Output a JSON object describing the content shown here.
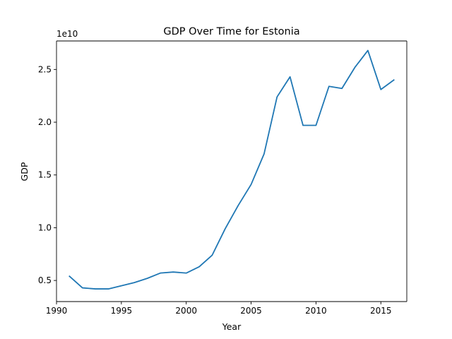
{
  "chart_data": {
    "type": "line",
    "title": "GDP Over Time for Estonia",
    "xlabel": "Year",
    "ylabel": "GDP",
    "y_offset_label": "1e10",
    "y_scale_factor": 10000000000,
    "xlim": [
      1990,
      2017
    ],
    "ylim": [
      0.3,
      2.77
    ],
    "x_ticks": [
      1990,
      1995,
      2000,
      2005,
      2010,
      2015
    ],
    "x_tick_labels": [
      "1990",
      "1995",
      "2000",
      "2005",
      "2010",
      "2015"
    ],
    "y_ticks": [
      0.5,
      1.0,
      1.5,
      2.0,
      2.5
    ],
    "y_tick_labels": [
      "0.5",
      "1.0",
      "1.5",
      "2.0",
      "2.5"
    ],
    "grid": false,
    "series": [
      {
        "color": "#1f77b4",
        "x": [
          1991,
          1992,
          1993,
          1994,
          1995,
          1996,
          1997,
          1998,
          1999,
          2000,
          2001,
          2002,
          2003,
          2004,
          2005,
          2006,
          2007,
          2008,
          2009,
          2010,
          2011,
          2012,
          2013,
          2014,
          2015,
          2016
        ],
        "y": [
          0.54,
          0.43,
          0.42,
          0.42,
          0.45,
          0.48,
          0.52,
          0.57,
          0.58,
          0.57,
          0.63,
          0.74,
          0.99,
          1.21,
          1.41,
          1.7,
          2.24,
          2.43,
          1.97,
          1.97,
          2.34,
          2.32,
          2.52,
          2.68,
          2.31,
          2.4
        ]
      }
    ]
  }
}
